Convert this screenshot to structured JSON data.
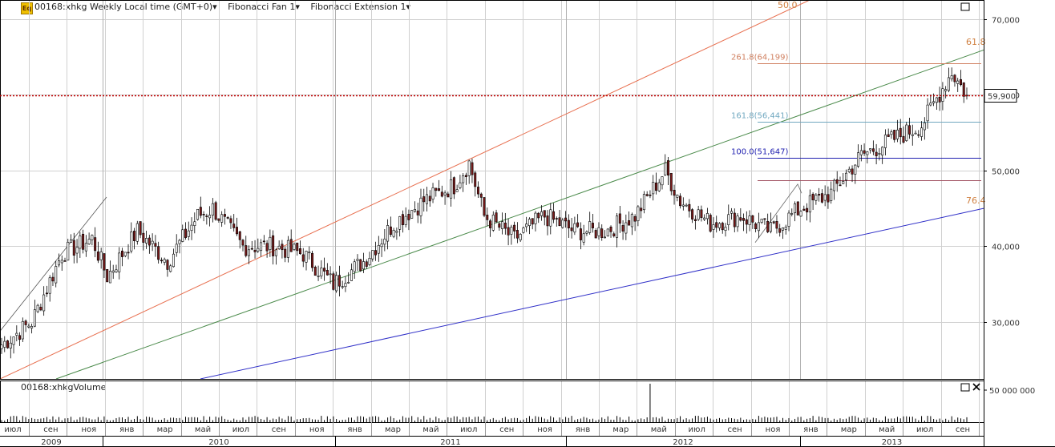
{
  "header": {
    "symbol_title": "00168:xhkg Weekly Local time (GMT+0)",
    "study1": "Fibonacci Fan 1",
    "study2": "Fibonacci Extension 1",
    "logo_text": "Eq"
  },
  "volume_title": "00168:xhkgVolume",
  "colors": {
    "up": "#ffffff",
    "down": "#7a1a1a",
    "grid": "#d0d0d0",
    "fan1": "#e87050",
    "fan2": "#4a8a4a",
    "fan3": "#3030c8",
    "ext261": "#d08060",
    "ext161": "#70a8c0",
    "ext100": "#2020b0",
    "ext0": "#a05060",
    "current": "#c00000"
  },
  "chart_data": {
    "type": "candlestick",
    "y_axis": {
      "ticks": [
        "70,000",
        "60,000",
        "50,000",
        "40,000",
        "30,000"
      ],
      "tick_values": [
        70000,
        60000,
        50000,
        40000,
        30000
      ],
      "range": [
        22500,
        72500
      ]
    },
    "current_price": {
      "label": "59,900",
      "value": 59900
    },
    "x_axis": {
      "months": [
        "июл",
        "сен",
        "ноя",
        "янв",
        "мар",
        "май",
        "июл",
        "сен",
        "ноя",
        "янв",
        "мар",
        "май",
        "июл",
        "сен",
        "ноя",
        "янв",
        "мар",
        "май",
        "июл",
        "сен",
        "ноя",
        "янв",
        "мар",
        "май",
        "июл",
        "сен"
      ],
      "years": [
        "2009",
        "2010",
        "2011",
        "2012",
        "2013"
      ]
    },
    "fibonacci_fan_labels": [
      "50.0",
      "61.8",
      "76.4"
    ],
    "fibonacci_extension_labels": [
      {
        "label": "261.8(64,199)",
        "value": 64199
      },
      {
        "label": "161.8(56,441)",
        "value": 56441
      },
      {
        "label": "100.0(51,647)",
        "value": 51647
      }
    ],
    "volume_axis": {
      "label": "50 000 000"
    },
    "weekly_close_anchors": [
      [
        0,
        27000
      ],
      [
        10,
        30000
      ],
      [
        20,
        39000
      ],
      [
        30,
        41000
      ],
      [
        35,
        36000
      ],
      [
        45,
        42000
      ],
      [
        55,
        38000
      ],
      [
        65,
        44000
      ],
      [
        70,
        45000
      ],
      [
        80,
        40000
      ],
      [
        90,
        40000
      ],
      [
        100,
        39000
      ],
      [
        110,
        35000
      ],
      [
        120,
        38000
      ],
      [
        130,
        43000
      ],
      [
        140,
        46000
      ],
      [
        150,
        48000
      ],
      [
        155,
        51000
      ],
      [
        160,
        44000
      ],
      [
        170,
        41000
      ],
      [
        180,
        44000
      ],
      [
        190,
        42000
      ],
      [
        200,
        42000
      ],
      [
        210,
        44000
      ],
      [
        215,
        47000
      ],
      [
        220,
        50000
      ],
      [
        225,
        46000
      ],
      [
        235,
        43000
      ],
      [
        245,
        44000
      ],
      [
        255,
        42000
      ],
      [
        265,
        45000
      ],
      [
        275,
        47000
      ],
      [
        285,
        52000
      ],
      [
        295,
        54000
      ],
      [
        305,
        56000
      ],
      [
        315,
        63000
      ],
      [
        320,
        59900
      ]
    ]
  }
}
